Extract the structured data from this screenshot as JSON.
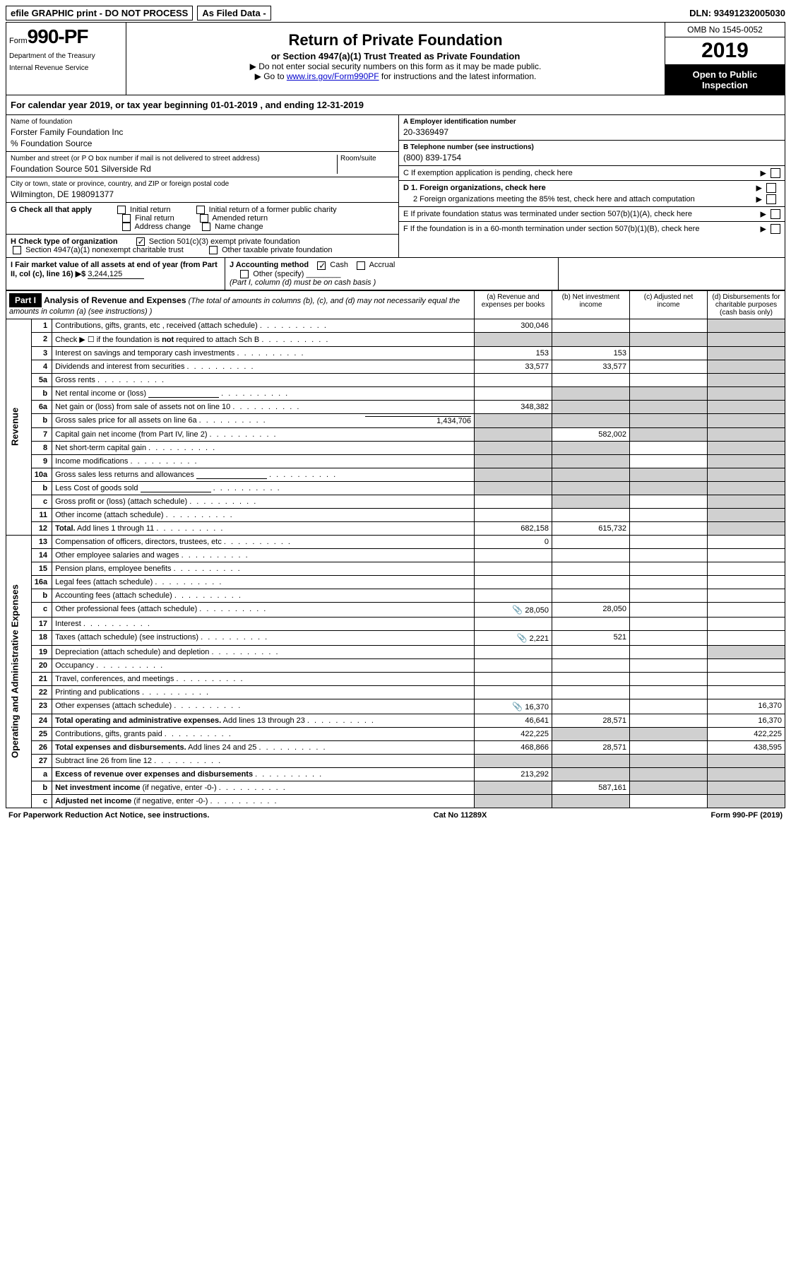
{
  "topbar": {
    "efile": "efile GRAPHIC print - DO NOT PROCESS",
    "asfiled": "As Filed Data -",
    "dln_label": "DLN:",
    "dln": "93491232005030"
  },
  "header": {
    "form_word": "Form",
    "form_num": "990-PF",
    "dept1": "Department of the Treasury",
    "dept2": "Internal Revenue Service",
    "title": "Return of Private Foundation",
    "subtitle": "or Section 4947(a)(1) Trust Treated as Private Foundation",
    "note1": "▶ Do not enter social security numbers on this form as it may be made public.",
    "note2_pre": "▶ Go to ",
    "note2_link": "www.irs.gov/Form990PF",
    "note2_post": " for instructions and the latest information.",
    "omb": "OMB No 1545-0052",
    "year": "2019",
    "open": "Open to Public Inspection"
  },
  "calyear": "For calendar year 2019, or tax year beginning 01-01-2019           , and ending 12-31-2019",
  "info": {
    "name_lbl": "Name of foundation",
    "name": "Forster Family Foundation Inc",
    "care_of": "% Foundation Source",
    "addr_lbl": "Number and street (or P O  box number if mail is not delivered to street address)",
    "room_lbl": "Room/suite",
    "addr": "Foundation Source 501 Silverside Rd",
    "city_lbl": "City or town, state or province, country, and ZIP or foreign postal code",
    "city": "Wilmington, DE  198091377",
    "A_lbl": "A Employer identification number",
    "A_val": "20-3369497",
    "B_lbl": "B Telephone number (see instructions)",
    "B_val": "(800) 839-1754",
    "C_lbl": "C If exemption application is pending, check here",
    "D1_lbl": "D 1. Foreign organizations, check here",
    "D2_lbl": "2 Foreign organizations meeting the 85% test, check here and attach computation",
    "E_lbl": "E  If private foundation status was terminated under section 507(b)(1)(A), check here",
    "F_lbl": "F  If the foundation is in a 60-month termination under section 507(b)(1)(B), check here"
  },
  "G": {
    "label": "G Check all that apply",
    "opts": [
      "Initial return",
      "Initial return of a former public charity",
      "Final return",
      "Amended return",
      "Address change",
      "Name change"
    ]
  },
  "H": {
    "label": "H Check type of organization",
    "opt1": "Section 501(c)(3) exempt private foundation",
    "opt2": "Section 4947(a)(1) nonexempt charitable trust",
    "opt3": "Other taxable private foundation"
  },
  "I": {
    "label": "I Fair market value of all assets at end of year (from Part II, col  (c), line 16) ▶$",
    "val": "3,244,125"
  },
  "J": {
    "label": "J Accounting method",
    "cash": "Cash",
    "accrual": "Accrual",
    "other": "Other (specify)",
    "note": "(Part I, column (d) must be on cash basis )"
  },
  "part1": {
    "badge": "Part I",
    "title": "Analysis of Revenue and Expenses",
    "title_note": "(The total of amounts in columns (b), (c), and (d) may not necessarily equal the amounts in column (a) (see instructions) )",
    "col_a": "(a)   Revenue and expenses per books",
    "col_b": "(b)  Net investment income",
    "col_c": "(c)  Adjusted net income",
    "col_d": "(d)  Disbursements for charitable purposes (cash basis only)"
  },
  "vlabels": {
    "revenue": "Revenue",
    "opadmin": "Operating and Administrative Expenses"
  },
  "rows": [
    {
      "n": "1",
      "desc": "Contributions, gifts, grants, etc , received (attach schedule)",
      "a": "300,046",
      "b": "",
      "c": "",
      "d": "",
      "d_shade": true
    },
    {
      "n": "2",
      "desc": "Check ▶ ☐ if the foundation is <b>not</b> required to attach Sch  B",
      "a": "",
      "b": "",
      "c": "",
      "d": "",
      "all_shade": true
    },
    {
      "n": "3",
      "desc": "Interest on savings and temporary cash investments",
      "a": "153",
      "b": "153",
      "c": "",
      "d": "",
      "d_shade": true
    },
    {
      "n": "4",
      "desc": "Dividends and interest from securities",
      "a": "33,577",
      "b": "33,577",
      "c": "",
      "d": "",
      "d_shade": true
    },
    {
      "n": "5a",
      "desc": "Gross rents",
      "a": "",
      "b": "",
      "c": "",
      "d": "",
      "d_shade": true
    },
    {
      "n": "b",
      "desc": "Net rental income or (loss)",
      "a": "",
      "b": "",
      "c": "",
      "d": "",
      "bcd_shade": true,
      "inline_box": true
    },
    {
      "n": "6a",
      "desc": "Net gain or (loss) from sale of assets not on line 10",
      "a": "348,382",
      "b": "",
      "c": "",
      "d": "",
      "bcd_shade": true
    },
    {
      "n": "b",
      "desc": "Gross sales price for all assets on line 6a",
      "a": "",
      "b": "",
      "c": "",
      "d": "",
      "all_shade": true,
      "inline_val": "1,434,706"
    },
    {
      "n": "7",
      "desc": "Capital gain net income (from Part IV, line 2)",
      "a": "",
      "b": "582,002",
      "c": "",
      "d": "",
      "a_shade": true,
      "cd_shade": true
    },
    {
      "n": "8",
      "desc": "Net short-term capital gain",
      "a": "",
      "b": "",
      "c": "",
      "d": "",
      "ab_shade": true,
      "d_shade": true
    },
    {
      "n": "9",
      "desc": "Income modifications",
      "a": "",
      "b": "",
      "c": "",
      "d": "",
      "ab_shade": true,
      "d_shade": true
    },
    {
      "n": "10a",
      "desc": "Gross sales less returns and allowances",
      "a": "",
      "b": "",
      "c": "",
      "d": "",
      "all_shade": true,
      "inline_box": true
    },
    {
      "n": "b",
      "desc": "Less  Cost of goods sold",
      "a": "",
      "b": "",
      "c": "",
      "d": "",
      "all_shade": true,
      "inline_box": true
    },
    {
      "n": "c",
      "desc": "Gross profit or (loss) (attach schedule)",
      "a": "",
      "b": "",
      "c": "",
      "d": "",
      "b_shade": true,
      "d_shade": true
    },
    {
      "n": "11",
      "desc": "Other income (attach schedule)",
      "a": "",
      "b": "",
      "c": "",
      "d": "",
      "d_shade": true
    },
    {
      "n": "12",
      "desc": "<b>Total.</b> Add lines 1 through 11",
      "a": "682,158",
      "b": "615,732",
      "c": "",
      "d": "",
      "d_shade": true
    },
    {
      "n": "13",
      "desc": "Compensation of officers, directors, trustees, etc",
      "a": "0",
      "b": "",
      "c": "",
      "d": ""
    },
    {
      "n": "14",
      "desc": "Other employee salaries and wages",
      "a": "",
      "b": "",
      "c": "",
      "d": ""
    },
    {
      "n": "15",
      "desc": "Pension plans, employee benefits",
      "a": "",
      "b": "",
      "c": "",
      "d": ""
    },
    {
      "n": "16a",
      "desc": "Legal fees (attach schedule)",
      "a": "",
      "b": "",
      "c": "",
      "d": ""
    },
    {
      "n": "b",
      "desc": "Accounting fees (attach schedule)",
      "a": "",
      "b": "",
      "c": "",
      "d": ""
    },
    {
      "n": "c",
      "desc": "Other professional fees (attach schedule)",
      "a": "28,050",
      "b": "28,050",
      "c": "",
      "d": "",
      "icon": true
    },
    {
      "n": "17",
      "desc": "Interest",
      "a": "",
      "b": "",
      "c": "",
      "d": ""
    },
    {
      "n": "18",
      "desc": "Taxes (attach schedule) (see instructions)",
      "a": "2,221",
      "b": "521",
      "c": "",
      "d": "",
      "icon": true
    },
    {
      "n": "19",
      "desc": "Depreciation (attach schedule) and depletion",
      "a": "",
      "b": "",
      "c": "",
      "d": "",
      "d_shade": true
    },
    {
      "n": "20",
      "desc": "Occupancy",
      "a": "",
      "b": "",
      "c": "",
      "d": ""
    },
    {
      "n": "21",
      "desc": "Travel, conferences, and meetings",
      "a": "",
      "b": "",
      "c": "",
      "d": ""
    },
    {
      "n": "22",
      "desc": "Printing and publications",
      "a": "",
      "b": "",
      "c": "",
      "d": ""
    },
    {
      "n": "23",
      "desc": "Other expenses (attach schedule)",
      "a": "16,370",
      "b": "",
      "c": "",
      "d": "16,370",
      "icon": true
    },
    {
      "n": "24",
      "desc": "<b>Total operating and administrative expenses.</b> Add lines 13 through 23",
      "a": "46,641",
      "b": "28,571",
      "c": "",
      "d": "16,370"
    },
    {
      "n": "25",
      "desc": "Contributions, gifts, grants paid",
      "a": "422,225",
      "b": "",
      "c": "",
      "d": "422,225",
      "bc_shade": true
    },
    {
      "n": "26",
      "desc": "<b>Total expenses and disbursements.</b> Add lines 24 and 25",
      "a": "468,866",
      "b": "28,571",
      "c": "",
      "d": "438,595"
    },
    {
      "n": "27",
      "desc": "Subtract line 26 from line 12",
      "a": "",
      "b": "",
      "c": "",
      "d": "",
      "all_shade": true
    },
    {
      "n": "a",
      "desc": "<b>Excess of revenue over expenses and disbursements</b>",
      "a": "213,292",
      "b": "",
      "c": "",
      "d": "",
      "bcd_shade": true
    },
    {
      "n": "b",
      "desc": "<b>Net investment income</b> (if negative, enter -0-)",
      "a": "",
      "b": "587,161",
      "c": "",
      "d": "",
      "a_shade": true,
      "cd_shade": true
    },
    {
      "n": "c",
      "desc": "<b>Adjusted net income</b> (if negative, enter -0-)",
      "a": "",
      "b": "",
      "c": "",
      "d": "",
      "ab_shade": true,
      "d_shade": true
    }
  ],
  "footer": {
    "left": "For Paperwork Reduction Act Notice, see instructions.",
    "center": "Cat  No  11289X",
    "right": "Form 990-PF (2019)"
  }
}
